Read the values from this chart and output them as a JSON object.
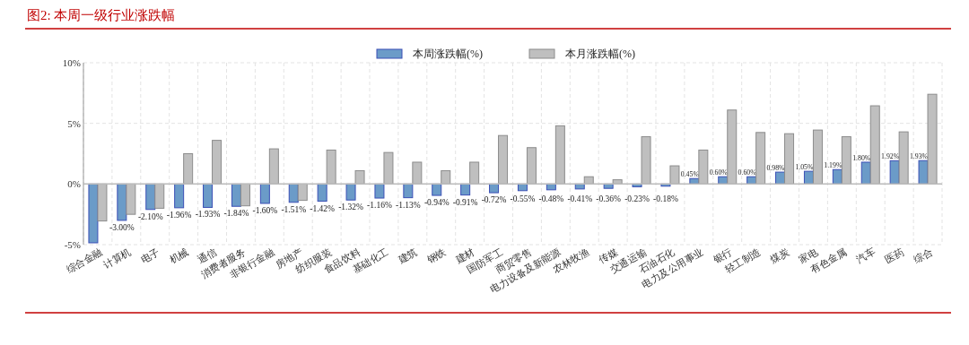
{
  "chart_data": {
    "type": "bar",
    "title": "图2:  本周一级行业涨跌幅",
    "categories": [
      "综合金融",
      "计算机",
      "电子",
      "机械",
      "通信",
      "消费者服务",
      "非银行金融",
      "房地产",
      "纺织服装",
      "食品饮料",
      "基础化工",
      "建筑",
      "钢铁",
      "建材",
      "国防军工",
      "商贸零售",
      "电力设备及新能源",
      "农林牧渔",
      "传媒",
      "交通运输",
      "石油石化",
      "电力及公用事业",
      "银行",
      "轻工制造",
      "煤炭",
      "家电",
      "有色金属",
      "汽车",
      "医药",
      "综合"
    ],
    "series": [
      {
        "name": "本周涨跌幅(%)",
        "color": "#6b9bc8",
        "values": [
          -4.85,
          -3.0,
          -2.1,
          -1.96,
          -1.93,
          -1.84,
          -1.6,
          -1.51,
          -1.42,
          -1.32,
          -1.16,
          -1.13,
          -0.94,
          -0.91,
          -0.72,
          -0.55,
          -0.48,
          -0.41,
          -0.36,
          -0.23,
          -0.18,
          0.45,
          0.6,
          0.6,
          0.98,
          1.05,
          1.19,
          1.8,
          1.92,
          1.93
        ],
        "value_labels": [
          null,
          "-3.00%",
          "-2.10%",
          "-1.96%",
          "-1.93%",
          "-1.84%",
          "-1.60%",
          "-1.51%",
          "-1.42%",
          "-1.32%",
          "-1.16%",
          "-1.13%",
          "-0.94%",
          "-0.91%",
          "-0.72%",
          "-0.55%",
          "-0.48%",
          "-0.41%",
          "-0.36%",
          "-0.23%",
          "-0.18%",
          "0.45%",
          "0.60%",
          "0.60%",
          "0.98%",
          "1.05%",
          "1.19%",
          "1.80%",
          "1.92%",
          "1.93%"
        ]
      },
      {
        "name": "本月涨跌幅(%)",
        "color": "#bfbfbf",
        "values": [
          -3.05,
          -2.5,
          -2.0,
          2.5,
          3.6,
          -1.8,
          2.9,
          -1.35,
          2.8,
          1.1,
          2.6,
          1.8,
          1.1,
          1.8,
          4.0,
          3.0,
          4.8,
          0.6,
          0.35,
          3.9,
          1.5,
          2.8,
          6.1,
          4.25,
          4.15,
          4.45,
          3.9,
          6.45,
          4.3,
          7.4
        ]
      }
    ],
    "ylim": [
      -5,
      10
    ],
    "yticks": [
      {
        "value": -5,
        "label": "-5%"
      },
      {
        "value": 0,
        "label": "0%"
      },
      {
        "value": 5,
        "label": "5%"
      },
      {
        "value": 10,
        "label": "10%"
      }
    ],
    "grid": true,
    "legend": "top"
  }
}
